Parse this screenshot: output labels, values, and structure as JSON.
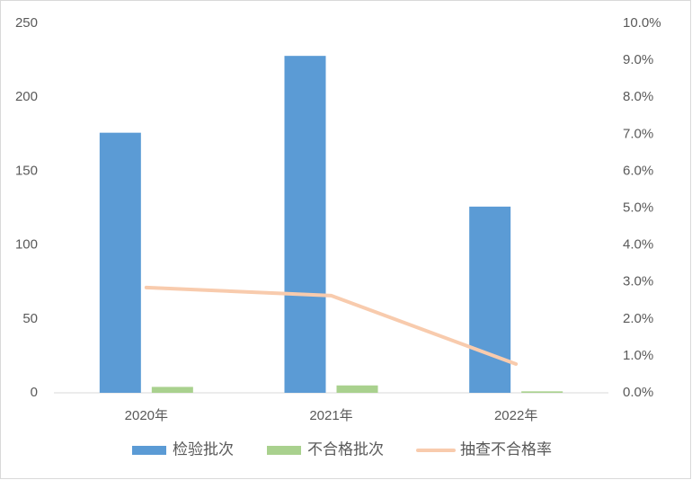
{
  "chart_data": {
    "type": "bar",
    "categories": [
      "2020年",
      "2021年",
      "2022年"
    ],
    "series": [
      {
        "name": "检验批次",
        "color": "#5b9bd5",
        "type": "bar",
        "values": [
          176,
          228,
          126
        ]
      },
      {
        "name": "不合格批次",
        "color": "#a9d18e",
        "type": "bar",
        "values": [
          4,
          5,
          1
        ]
      },
      {
        "name": "抽查不合格率",
        "color": "#f8cbad",
        "type": "line",
        "axis": "y2",
        "values": [
          2.85,
          2.63,
          0.78
        ]
      }
    ],
    "ylim": [
      0,
      250
    ],
    "yticks": [
      0,
      50,
      100,
      150,
      200,
      250
    ],
    "y2lim": [
      0,
      10
    ],
    "y2ticks": [
      {
        "value": 0,
        "label": "0.0%"
      },
      {
        "value": 1,
        "label": "1.0%"
      },
      {
        "value": 2,
        "label": "2.0%"
      },
      {
        "value": 3,
        "label": "3.0%"
      },
      {
        "value": 4,
        "label": "4.0%"
      },
      {
        "value": 5,
        "label": "5.0%"
      },
      {
        "value": 6,
        "label": "6.0%"
      },
      {
        "value": 7,
        "label": "7.0%"
      },
      {
        "value": 8,
        "label": "8.0%"
      },
      {
        "value": 9,
        "label": "9.0%"
      },
      {
        "value": 10,
        "label": "10.0%"
      }
    ],
    "grid": false,
    "legend": "bottom"
  }
}
